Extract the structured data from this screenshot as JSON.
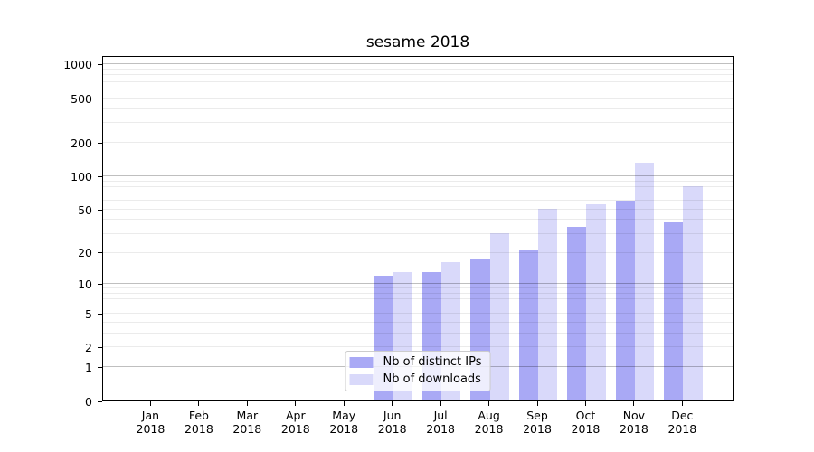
{
  "chart_data": {
    "type": "bar",
    "title": "sesame 2018",
    "categories": [
      "Jan",
      "Feb",
      "Mar",
      "Apr",
      "May",
      "Jun",
      "Jul",
      "Aug",
      "Sep",
      "Oct",
      "Nov",
      "Dec"
    ],
    "category_year": "2018",
    "series": [
      {
        "name": "Nb of distinct IPs",
        "color": "#a9a9f5",
        "values": [
          0,
          0,
          0,
          0,
          0,
          12,
          13,
          17,
          21,
          34,
          60,
          38
        ]
      },
      {
        "name": "Nb of downloads",
        "color": "#d9d9fa",
        "values": [
          0,
          0,
          0,
          0,
          0,
          13,
          16,
          30,
          50,
          55,
          130,
          80
        ]
      }
    ],
    "y_axis": {
      "scale": "log1p",
      "tick_values": [
        0,
        1,
        2,
        5,
        10,
        20,
        50,
        100,
        200,
        500,
        1000
      ],
      "tick_labels": [
        "0",
        "1",
        "2",
        "5",
        "10",
        "20",
        "50",
        "100",
        "200",
        "500",
        "1000"
      ],
      "major_grid": [
        1,
        10,
        100,
        1000
      ],
      "minor_grid": [
        2,
        3,
        4,
        5,
        6,
        7,
        8,
        9,
        20,
        30,
        40,
        50,
        60,
        70,
        80,
        90,
        200,
        300,
        400,
        500,
        600,
        700,
        800,
        900
      ],
      "max": 1200
    },
    "xlabel": "",
    "ylabel": "",
    "grid": true,
    "legend_position": "lower center",
    "colors": {
      "axis": "#000000",
      "grid_major": "#bfbfbf",
      "grid_minor": "#ebebeb",
      "background": "#ffffff"
    }
  }
}
